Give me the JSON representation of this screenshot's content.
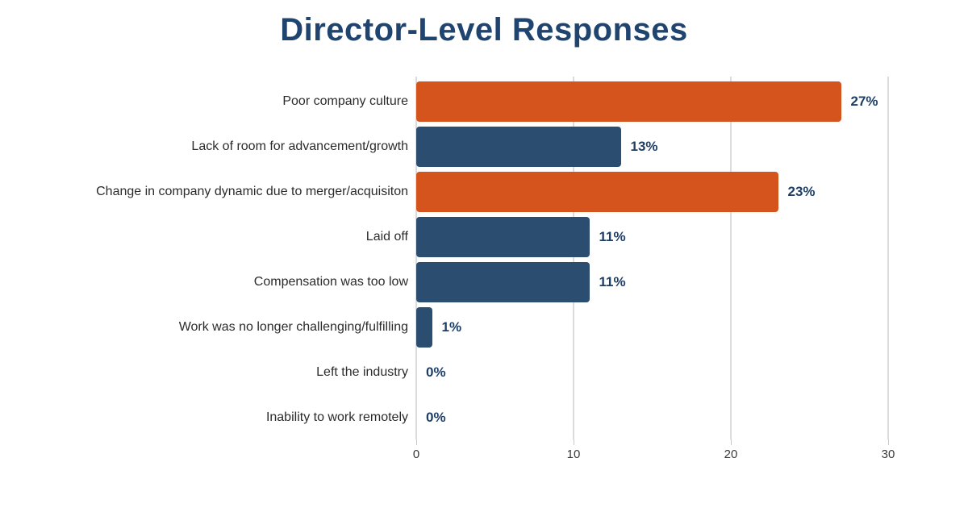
{
  "page": {
    "background": "#FFFFFF"
  },
  "chart_data": {
    "type": "bar",
    "orientation": "horizontal",
    "title": "Director-Level Responses",
    "categories": [
      "Poor company culture",
      "Lack of room for advancement/growth",
      "Change in company dynamic due to merger/acquisiton",
      "Laid off",
      "Compensation was too low",
      "Work was no longer challenging/fulfilling",
      "Left the industry",
      "Inability to work remotely"
    ],
    "values": [
      27,
      13,
      23,
      11,
      11,
      1,
      0,
      0
    ],
    "value_labels": [
      "27%",
      "13%",
      "23%",
      "11%",
      "11%",
      "1%",
      "0%",
      "0%"
    ],
    "bar_colors": [
      "#D5541E",
      "#2B4D6F",
      "#D5541E",
      "#2B4D6F",
      "#2B4D6F",
      "#2B4D6F",
      "#2B4D6F",
      "#2B4D6F"
    ],
    "xlabel": "",
    "ylabel": "",
    "xlim": [
      0,
      30
    ],
    "x_ticks": [
      0,
      10,
      20,
      30
    ],
    "grid": "vertical gridlines at x ticks, light grey",
    "legend": "none"
  },
  "colors": {
    "title": "#1F4470",
    "value_label": "#1F3E66",
    "category_label": "#2B2B2B",
    "tick_label": "#3A3A3A",
    "gridline": "#DCDCDC",
    "bar_orange": "#D5541E",
    "bar_blue": "#2B4D6F",
    "background": "#FFFFFF"
  }
}
